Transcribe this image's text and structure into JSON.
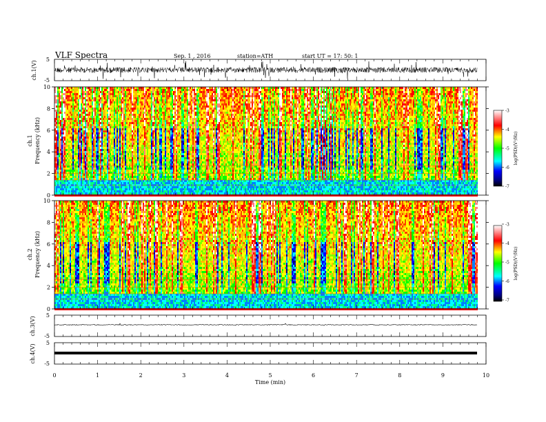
{
  "header": {
    "title": "VLF  Spectra",
    "date": "Sep. 1  , 2016",
    "station": "station=ATH",
    "start": "start  UT  =    17: 50: 1"
  },
  "chart_data": [
    {
      "type": "line",
      "name": "ch1-waveform",
      "ylabel": "ch.1(V)",
      "ylim": [
        -5,
        5
      ],
      "yticks": [
        "5",
        "-5"
      ],
      "xlim": [
        0,
        10
      ]
    },
    {
      "type": "heatmap",
      "name": "ch1-spectrogram",
      "ylabel_top": "ch.1",
      "ylabel": "Frequency  (kHz)",
      "ylim": [
        0,
        10
      ],
      "yticks": [
        "10",
        "8",
        "6",
        "4",
        "2",
        "0"
      ],
      "xlim": [
        0,
        10
      ],
      "colorbar": {
        "label": "log(PSD)(V²/Hz)",
        "range": [
          -7,
          -3
        ],
        "ticks": [
          "-3",
          "-4",
          "-5",
          "-6",
          "-7"
        ],
        "colors": [
          "#000000",
          "#0000ff",
          "#00ffff",
          "#00ff00",
          "#ffff00",
          "#ff0000",
          "#ffffff"
        ]
      }
    },
    {
      "type": "heatmap",
      "name": "ch2-spectrogram",
      "ylabel_top": "ch.2",
      "ylabel": "Frequency  (kHz)",
      "ylim": [
        0,
        10
      ],
      "yticks": [
        "10",
        "8",
        "6",
        "4",
        "2",
        "0"
      ],
      "xlim": [
        0,
        10
      ],
      "colorbar": {
        "label": "log(PSD)(V²/Hz)",
        "range": [
          -7,
          -3
        ],
        "ticks": [
          "-3",
          "-4",
          "-5",
          "-6",
          "-7"
        ],
        "colors": [
          "#000000",
          "#0000ff",
          "#00ffff",
          "#00ff00",
          "#ffff00",
          "#ff0000",
          "#ffffff"
        ]
      }
    },
    {
      "type": "line",
      "name": "ch3-waveform",
      "ylabel": "ch.3(V)",
      "ylim": [
        -5,
        5
      ],
      "yticks": [
        "5",
        "-5"
      ],
      "xlim": [
        0,
        10
      ]
    },
    {
      "type": "line",
      "name": "ch4-waveform",
      "ylabel": "ch.4(V)",
      "ylim": [
        -5,
        5
      ],
      "yticks": [
        "5",
        "-5"
      ],
      "xlim": [
        0,
        10
      ]
    }
  ],
  "xaxis": {
    "label": "Time  (min)",
    "ticks": [
      "0",
      "1",
      "2",
      "3",
      "4",
      "5",
      "6",
      "7",
      "8",
      "9",
      "10"
    ]
  }
}
